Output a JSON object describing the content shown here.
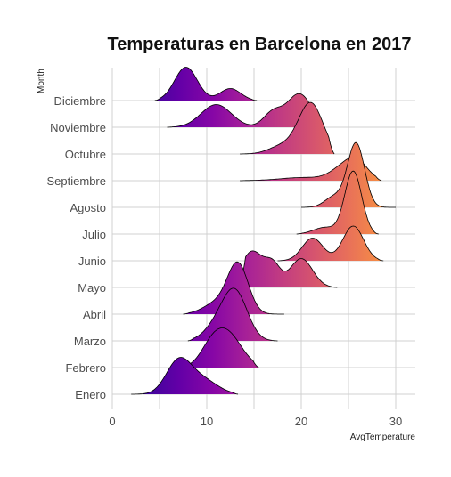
{
  "chart_data": {
    "type": "ridgeline",
    "title": "Temperaturas en Barcelona en 2017",
    "xlabel": "AvgTemperature",
    "ylabel": "Month",
    "xlim": [
      0,
      32
    ],
    "x_ticks": [
      0,
      10,
      20,
      30
    ],
    "color_scale": "plasma",
    "grid": true,
    "categories": [
      "Enero",
      "Febrero",
      "Marzo",
      "Abril",
      "Mayo",
      "Junio",
      "Julio",
      "Agosto",
      "Septiembre",
      "Octubre",
      "Noviembre",
      "Diciembre"
    ],
    "series": [
      {
        "range": [
          2.0,
          13.3
        ],
        "peaks": [
          {
            "x": 7.0,
            "h": 1.2,
            "w": 1.3
          },
          {
            "x": 9.5,
            "h": 0.55,
            "w": 1.6
          }
        ]
      },
      {
        "range": [
          7.0,
          15.5
        ],
        "peaks": [
          {
            "x": 12.0,
            "h": 1.35,
            "w": 1.6
          },
          {
            "x": 10.3,
            "h": 0.35,
            "w": 1.1
          }
        ]
      },
      {
        "range": [
          8.0,
          17.5
        ],
        "peaks": [
          {
            "x": 13.0,
            "h": 1.8,
            "w": 1.3
          },
          {
            "x": 11.0,
            "h": 0.5,
            "w": 1.3
          }
        ]
      },
      {
        "range": [
          7.5,
          18.2
        ],
        "peaks": [
          {
            "x": 13.3,
            "h": 1.85,
            "w": 1.1
          },
          {
            "x": 11.0,
            "h": 0.4,
            "w": 1.4
          }
        ]
      },
      {
        "range": [
          13.5,
          23.8
        ],
        "peaks": [
          {
            "x": 14.8,
            "h": 1.35,
            "w": 1.2
          },
          {
            "x": 17.0,
            "h": 0.75,
            "w": 0.8
          },
          {
            "x": 20.0,
            "h": 1.08,
            "w": 1.2
          }
        ]
      },
      {
        "range": [
          17.5,
          28.7
        ],
        "peaks": [
          {
            "x": 21.2,
            "h": 0.85,
            "w": 1.1
          },
          {
            "x": 25.5,
            "h": 1.3,
            "w": 1.1
          }
        ]
      },
      {
        "range": [
          19.5,
          28.2
        ],
        "peaks": [
          {
            "x": 25.5,
            "h": 2.35,
            "w": 0.9
          },
          {
            "x": 22.5,
            "h": 0.25,
            "w": 1.2
          }
        ]
      },
      {
        "range": [
          20.0,
          30.0
        ],
        "peaks": [
          {
            "x": 25.8,
            "h": 2.4,
            "w": 0.9
          },
          {
            "x": 23.5,
            "h": 0.4,
            "w": 1.0
          }
        ]
      },
      {
        "range": [
          13.5,
          28.5
        ],
        "peaks": [
          {
            "x": 20.3,
            "h": 0.12,
            "w": 2.5
          },
          {
            "x": 24.0,
            "h": 0.3,
            "w": 1.2
          },
          {
            "x": 25.8,
            "h": 0.75,
            "w": 1.2
          }
        ]
      },
      {
        "range": [
          13.5,
          23.5
        ],
        "peaks": [
          {
            "x": 21.0,
            "h": 1.9,
            "w": 1.3
          },
          {
            "x": 18.0,
            "h": 0.3,
            "w": 1.4
          }
        ]
      },
      {
        "range": [
          5.8,
          21.5
        ],
        "peaks": [
          {
            "x": 11.0,
            "h": 0.85,
            "w": 1.6
          },
          {
            "x": 17.0,
            "h": 0.55,
            "w": 1.0
          },
          {
            "x": 19.8,
            "h": 1.25,
            "w": 1.3
          }
        ]
      },
      {
        "range": [
          4.5,
          15.3
        ],
        "peaks": [
          {
            "x": 7.8,
            "h": 1.25,
            "w": 1.2
          },
          {
            "x": 12.5,
            "h": 0.45,
            "w": 1.1
          }
        ]
      }
    ]
  }
}
